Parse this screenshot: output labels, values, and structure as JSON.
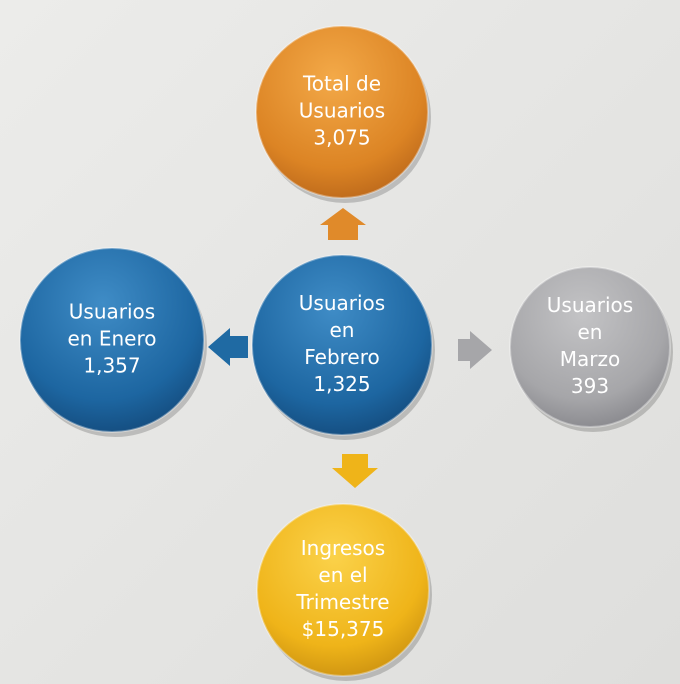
{
  "nodes": [
    {
      "lines": [
        "Total de",
        "Usuarios"
      ],
      "value": "3,075"
    },
    {
      "lines": [
        "Usuarios",
        "en Enero"
      ],
      "value": "1,357"
    },
    {
      "lines": [
        "Usuarios",
        "en",
        "Febrero"
      ],
      "value": "1,325"
    },
    {
      "lines": [
        "Usuarios",
        "en",
        "Marzo"
      ],
      "value": "393"
    },
    {
      "lines": [
        "Ingresos",
        "en el",
        "Trimestre"
      ],
      "value": "$15,375"
    }
  ]
}
